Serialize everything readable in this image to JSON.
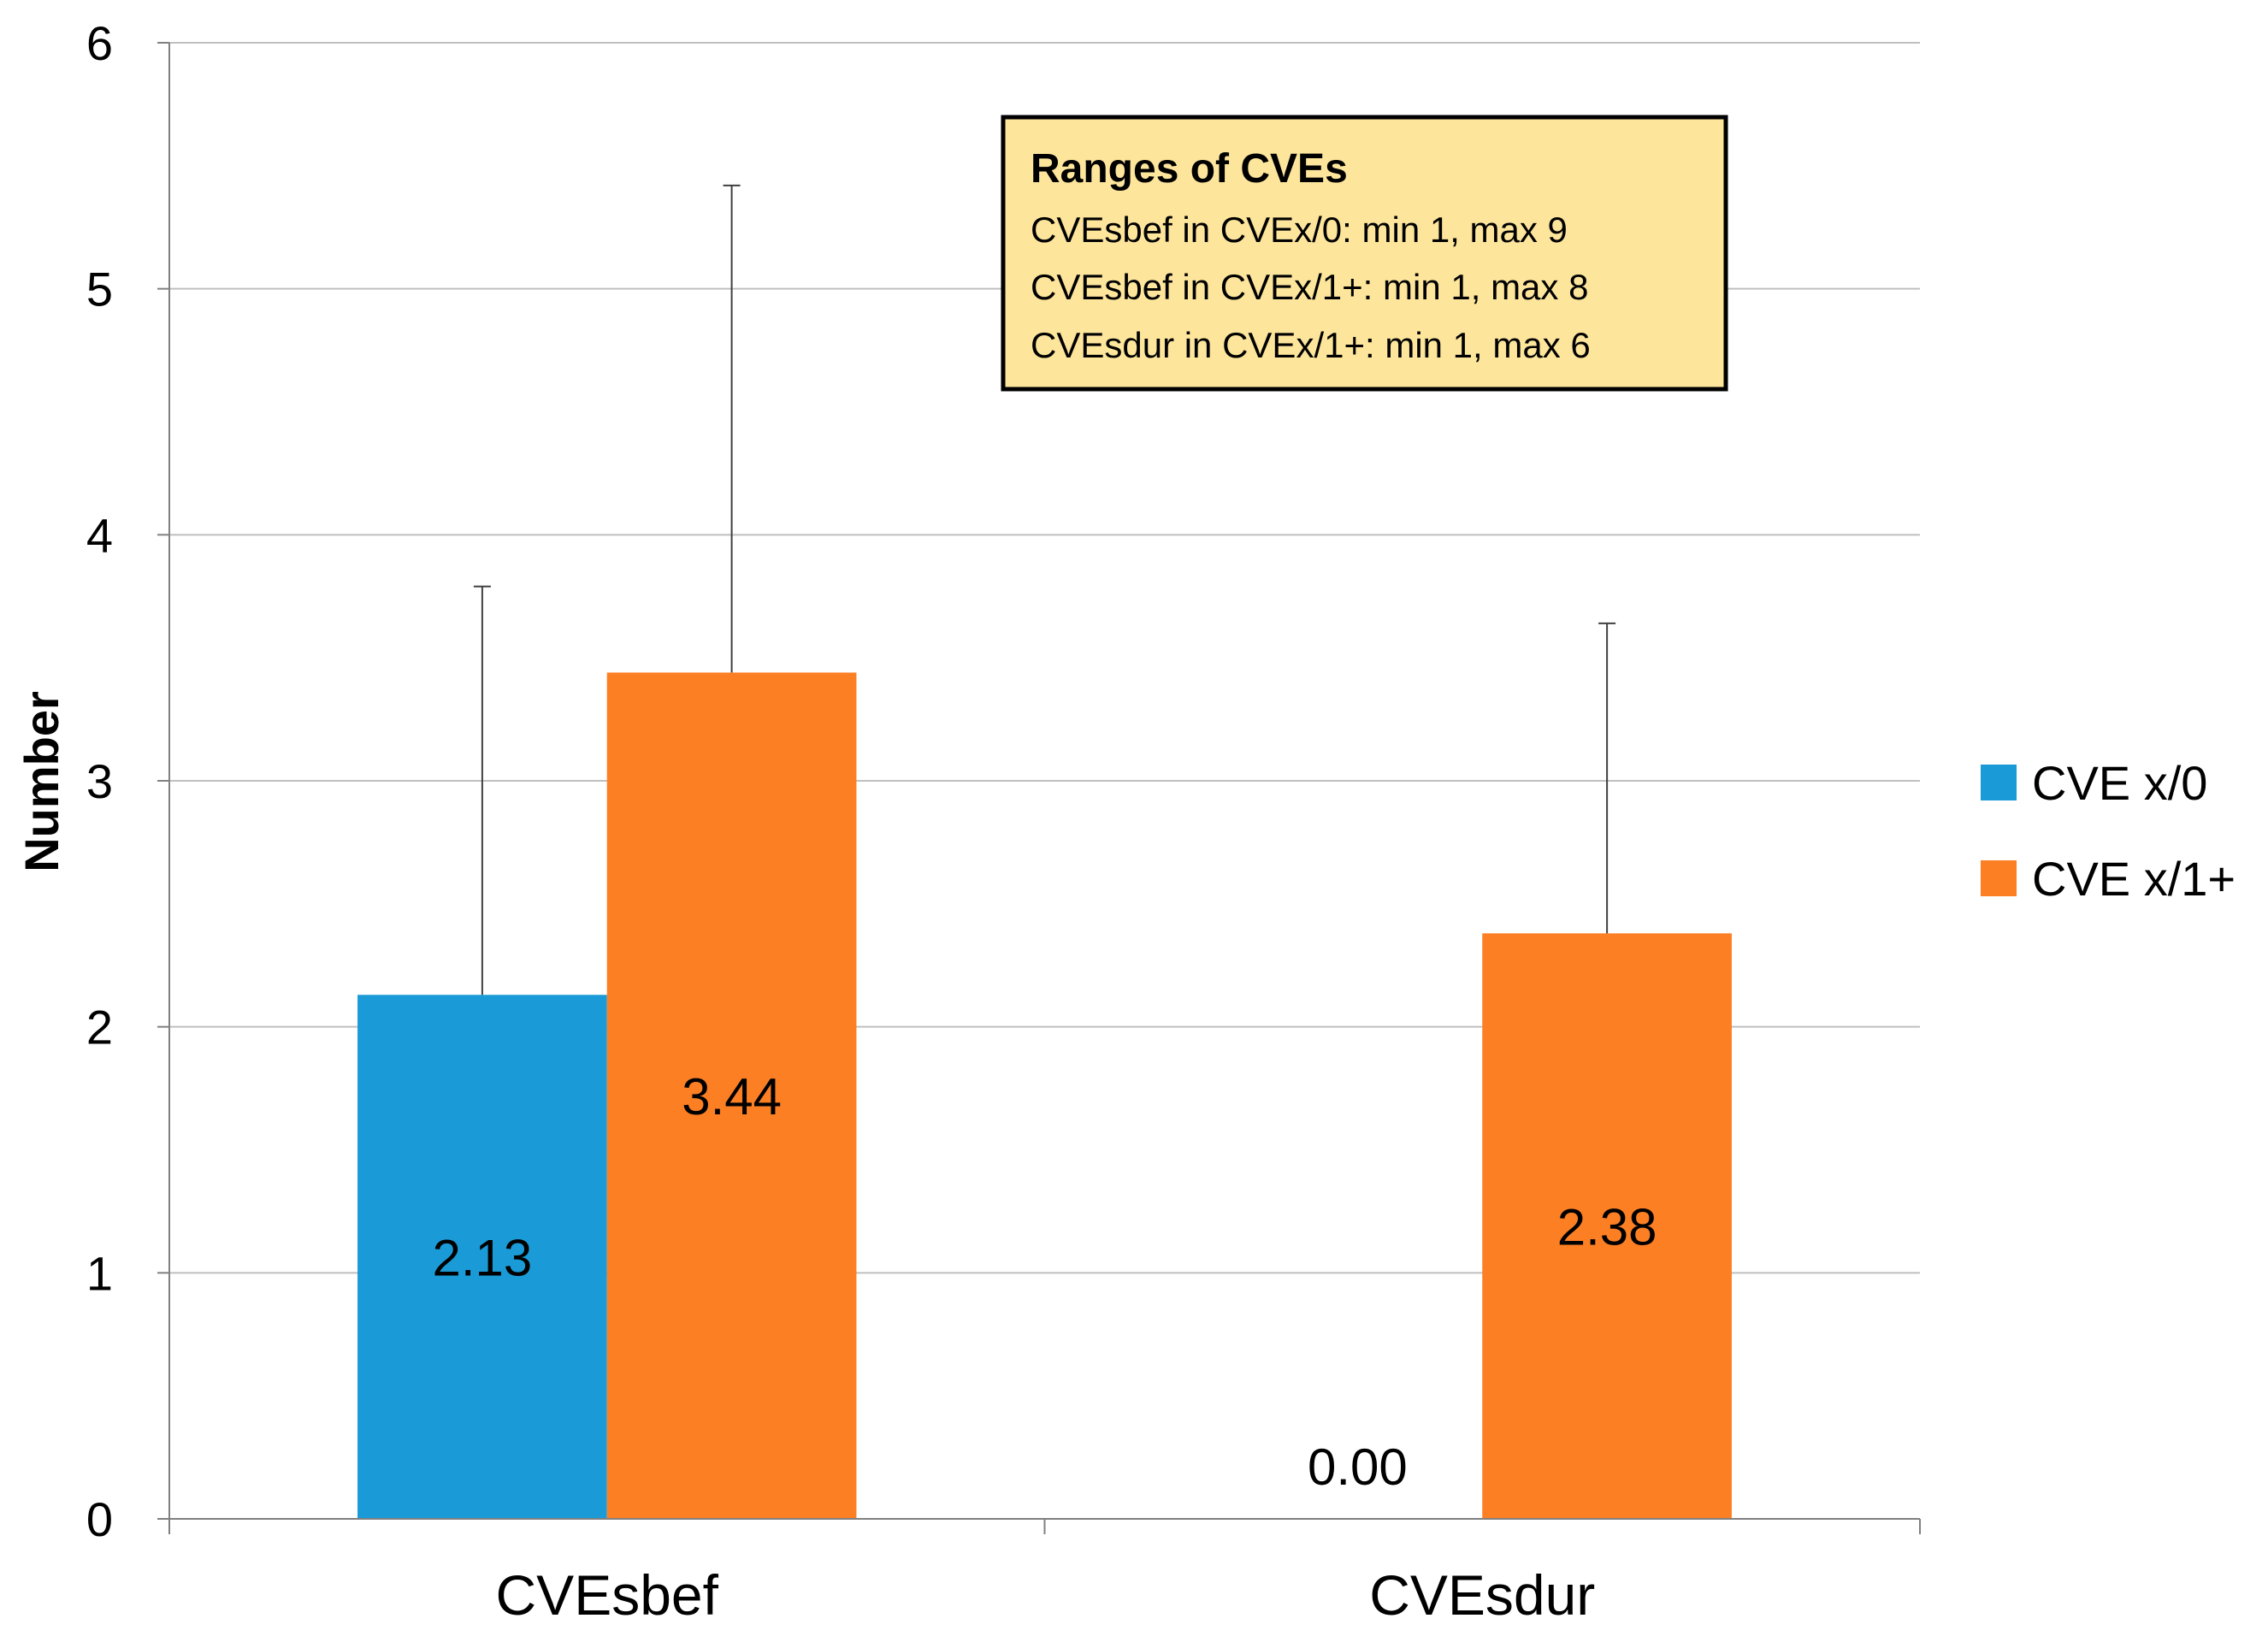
{
  "chart_data": {
    "type": "bar",
    "categories": [
      "CVEsbef",
      "CVEsdur"
    ],
    "series": [
      {
        "name": "CVE x/0",
        "values": [
          2.13,
          0.0
        ],
        "error": [
          1.66,
          null
        ],
        "color": "#1a9bd7"
      },
      {
        "name": "CVE x/1+",
        "values": [
          3.44,
          2.38
        ],
        "error": [
          1.98,
          1.26
        ],
        "color": "#fd7f23"
      }
    ],
    "data_labels": [
      [
        "2.13",
        "0.00"
      ],
      [
        "3.44",
        "2.38"
      ]
    ],
    "title": "",
    "xlabel": "",
    "ylabel": "Number",
    "ylim": [
      0,
      6
    ],
    "yticks": [
      "0",
      "1",
      "2",
      "3",
      "4",
      "5",
      "6"
    ],
    "grid": true,
    "legend_position": "right",
    "annotation": {
      "title": "Ranges of CVEs",
      "lines": [
        "CVEsbef in CVEx/0: min 1, max 9",
        "CVEsbef in CVEx/1+: min 1, max 8",
        "CVEsdur in CVEx/1+: min 1, max 6"
      ],
      "fill": "#fde59c",
      "border": "#000000"
    }
  }
}
